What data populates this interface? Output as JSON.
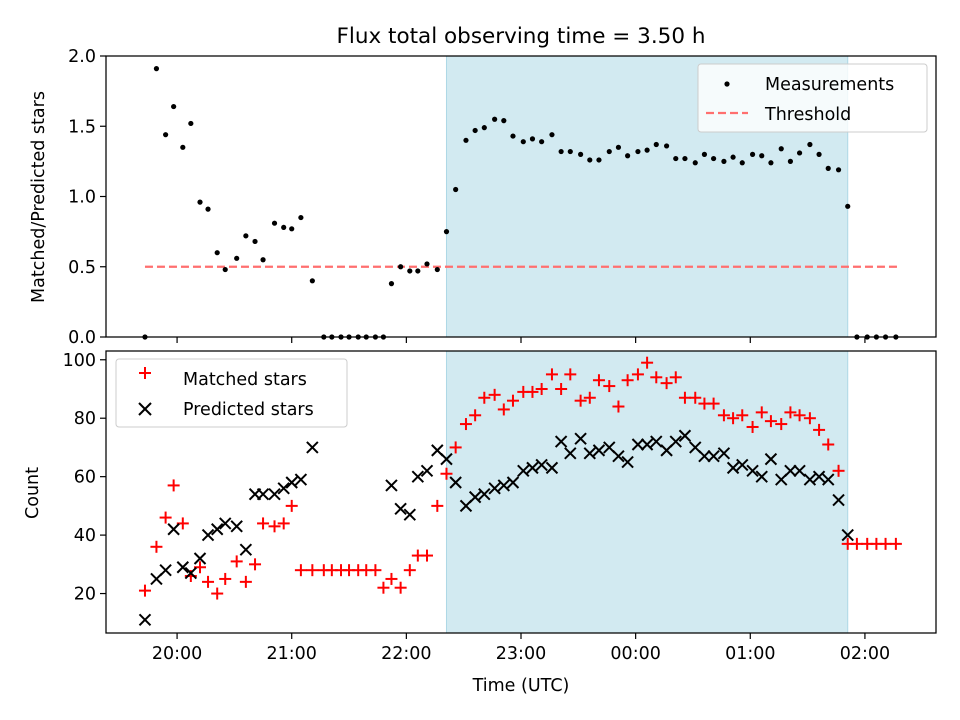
{
  "chart_data": [
    {
      "type": "scatter",
      "title": "Flux total observing time = 3.50 h",
      "xlabel": "",
      "ylabel": "Matched/Predicted stars",
      "x_ticklabels": [
        "20:00",
        "21:00",
        "22:00",
        "23:00",
        "00:00",
        "01:00",
        "02:00"
      ],
      "x_tick_hours": [
        20,
        21,
        22,
        23,
        24,
        25,
        26
      ],
      "xlim_hours": [
        19.38,
        26.62
      ],
      "ylim": [
        0,
        2.0
      ],
      "yticks": [
        0.0,
        0.5,
        1.0,
        1.5,
        2.0
      ],
      "ytick_labels": [
        "0.0",
        "0.5",
        "1.0",
        "1.5",
        "2.0"
      ],
      "shaded_span_hours": [
        22.35,
        25.85
      ],
      "shade_color": "#add8e6",
      "legend_position": "top-right",
      "threshold": {
        "name": "Threshold",
        "y": 0.5,
        "x_range_hours": [
          19.72,
          26.28
        ],
        "color": "#ff6f6f"
      },
      "series": [
        {
          "name": "Measurements",
          "color": "#000000",
          "points": [
            [
              19.72,
              0.0
            ],
            [
              19.82,
              1.91
            ],
            [
              19.9,
              1.44
            ],
            [
              19.97,
              1.64
            ],
            [
              20.05,
              1.35
            ],
            [
              20.12,
              1.52
            ],
            [
              20.2,
              0.96
            ],
            [
              20.27,
              0.91
            ],
            [
              20.35,
              0.6
            ],
            [
              20.42,
              0.48
            ],
            [
              20.52,
              0.56
            ],
            [
              20.6,
              0.72
            ],
            [
              20.68,
              0.68
            ],
            [
              20.75,
              0.55
            ],
            [
              20.85,
              0.81
            ],
            [
              20.93,
              0.78
            ],
            [
              21.0,
              0.77
            ],
            [
              21.08,
              0.85
            ],
            [
              21.18,
              0.4
            ],
            [
              21.28,
              0.0
            ],
            [
              21.35,
              0.0
            ],
            [
              21.43,
              0.0
            ],
            [
              21.5,
              0.0
            ],
            [
              21.58,
              0.0
            ],
            [
              21.65,
              0.0
            ],
            [
              21.73,
              0.0
            ],
            [
              21.8,
              0.0
            ],
            [
              21.87,
              0.38
            ],
            [
              21.95,
              0.5
            ],
            [
              22.03,
              0.47
            ],
            [
              22.1,
              0.47
            ],
            [
              22.18,
              0.52
            ],
            [
              22.27,
              0.48
            ],
            [
              22.35,
              0.75
            ],
            [
              22.43,
              1.05
            ],
            [
              22.52,
              1.4
            ],
            [
              22.6,
              1.47
            ],
            [
              22.68,
              1.49
            ],
            [
              22.77,
              1.55
            ],
            [
              22.85,
              1.54
            ],
            [
              22.93,
              1.43
            ],
            [
              23.02,
              1.39
            ],
            [
              23.1,
              1.41
            ],
            [
              23.18,
              1.39
            ],
            [
              23.27,
              1.44
            ],
            [
              23.35,
              1.32
            ],
            [
              23.43,
              1.32
            ],
            [
              23.52,
              1.3
            ],
            [
              23.6,
              1.26
            ],
            [
              23.68,
              1.26
            ],
            [
              23.77,
              1.32
            ],
            [
              23.85,
              1.35
            ],
            [
              23.93,
              1.29
            ],
            [
              24.02,
              1.32
            ],
            [
              24.1,
              1.33
            ],
            [
              24.18,
              1.37
            ],
            [
              24.27,
              1.36
            ],
            [
              24.35,
              1.27
            ],
            [
              24.43,
              1.27
            ],
            [
              24.52,
              1.24
            ],
            [
              24.6,
              1.3
            ],
            [
              24.68,
              1.27
            ],
            [
              24.77,
              1.25
            ],
            [
              24.85,
              1.28
            ],
            [
              24.93,
              1.24
            ],
            [
              25.02,
              1.3
            ],
            [
              25.1,
              1.29
            ],
            [
              25.18,
              1.24
            ],
            [
              25.27,
              1.34
            ],
            [
              25.35,
              1.25
            ],
            [
              25.43,
              1.31
            ],
            [
              25.52,
              1.37
            ],
            [
              25.6,
              1.3
            ],
            [
              25.68,
              1.2
            ],
            [
              25.77,
              1.19
            ],
            [
              25.85,
              0.93
            ],
            [
              25.93,
              0.0
            ],
            [
              26.02,
              0.0
            ],
            [
              26.1,
              0.0
            ],
            [
              26.18,
              0.0
            ],
            [
              26.27,
              0.0
            ]
          ]
        }
      ]
    },
    {
      "type": "scatter",
      "title": "",
      "xlabel": "Time (UTC)",
      "ylabel": "Count",
      "x_ticklabels": [
        "20:00",
        "21:00",
        "22:00",
        "23:00",
        "00:00",
        "01:00",
        "02:00"
      ],
      "x_tick_hours": [
        20,
        21,
        22,
        23,
        24,
        25,
        26
      ],
      "xlim_hours": [
        19.38,
        26.62
      ],
      "ylim": [
        6.5,
        103
      ],
      "yticks": [
        20,
        40,
        60,
        80,
        100
      ],
      "ytick_labels": [
        "20",
        "40",
        "60",
        "80",
        "100"
      ],
      "shaded_span_hours": [
        22.35,
        25.85
      ],
      "shade_color": "#add8e6",
      "legend_position": "top-left",
      "series": [
        {
          "name": "Matched stars",
          "marker": "+",
          "color": "#ff0000",
          "points": [
            [
              19.72,
              21
            ],
            [
              19.82,
              36
            ],
            [
              19.9,
              46
            ],
            [
              19.97,
              57
            ],
            [
              20.05,
              44
            ],
            [
              20.12,
              26
            ],
            [
              20.2,
              29
            ],
            [
              20.27,
              24
            ],
            [
              20.35,
              20
            ],
            [
              20.42,
              25
            ],
            [
              20.52,
              31
            ],
            [
              20.6,
              24
            ],
            [
              20.68,
              30
            ],
            [
              20.75,
              44
            ],
            [
              20.85,
              43
            ],
            [
              20.93,
              44
            ],
            [
              21.0,
              50
            ],
            [
              21.08,
              28
            ],
            [
              21.18,
              28
            ],
            [
              21.28,
              28
            ],
            [
              21.35,
              28
            ],
            [
              21.43,
              28
            ],
            [
              21.5,
              28
            ],
            [
              21.58,
              28
            ],
            [
              21.65,
              28
            ],
            [
              21.73,
              28
            ],
            [
              21.8,
              22
            ],
            [
              21.87,
              25
            ],
            [
              21.95,
              22
            ],
            [
              22.03,
              28
            ],
            [
              22.1,
              33
            ],
            [
              22.18,
              33
            ],
            [
              22.27,
              50
            ],
            [
              22.35,
              61
            ],
            [
              22.43,
              70
            ],
            [
              22.52,
              78
            ],
            [
              22.6,
              81
            ],
            [
              22.68,
              87
            ],
            [
              22.77,
              88
            ],
            [
              22.85,
              83
            ],
            [
              22.93,
              86
            ],
            [
              23.02,
              89
            ],
            [
              23.1,
              89
            ],
            [
              23.18,
              90
            ],
            [
              23.27,
              95
            ],
            [
              23.35,
              90
            ],
            [
              23.43,
              95
            ],
            [
              23.52,
              86
            ],
            [
              23.6,
              87
            ],
            [
              23.68,
              93
            ],
            [
              23.77,
              91
            ],
            [
              23.85,
              84
            ],
            [
              23.93,
              93
            ],
            [
              24.02,
              95
            ],
            [
              24.1,
              99
            ],
            [
              24.18,
              94
            ],
            [
              24.27,
              92
            ],
            [
              24.35,
              94
            ],
            [
              24.43,
              87
            ],
            [
              24.52,
              87
            ],
            [
              24.6,
              85
            ],
            [
              24.68,
              85
            ],
            [
              24.77,
              81
            ],
            [
              24.85,
              80
            ],
            [
              24.93,
              81
            ],
            [
              25.02,
              77
            ],
            [
              25.1,
              82
            ],
            [
              25.18,
              79
            ],
            [
              25.27,
              78
            ],
            [
              25.35,
              82
            ],
            [
              25.43,
              81
            ],
            [
              25.52,
              80
            ],
            [
              25.6,
              76
            ],
            [
              25.68,
              71
            ],
            [
              25.77,
              62
            ],
            [
              25.85,
              37
            ],
            [
              25.93,
              37
            ],
            [
              26.02,
              37
            ],
            [
              26.1,
              37
            ],
            [
              26.18,
              37
            ],
            [
              26.27,
              37
            ]
          ]
        },
        {
          "name": "Predicted stars",
          "marker": "x",
          "color": "#000000",
          "points": [
            [
              19.72,
              11
            ],
            [
              19.82,
              25
            ],
            [
              19.9,
              28
            ],
            [
              19.97,
              42
            ],
            [
              20.05,
              29
            ],
            [
              20.12,
              27
            ],
            [
              20.2,
              32
            ],
            [
              20.27,
              40
            ],
            [
              20.35,
              42
            ],
            [
              20.42,
              44
            ],
            [
              20.52,
              43
            ],
            [
              20.6,
              35
            ],
            [
              20.68,
              54
            ],
            [
              20.75,
              54
            ],
            [
              20.85,
              54
            ],
            [
              20.93,
              56
            ],
            [
              21.0,
              58
            ],
            [
              21.08,
              59
            ],
            [
              21.18,
              70
            ],
            [
              21.87,
              57
            ],
            [
              21.95,
              49
            ],
            [
              22.03,
              47
            ],
            [
              22.1,
              60
            ],
            [
              22.18,
              62
            ],
            [
              22.27,
              69
            ],
            [
              22.35,
              66
            ],
            [
              22.43,
              58
            ],
            [
              22.52,
              50
            ],
            [
              22.6,
              53
            ],
            [
              22.68,
              54
            ],
            [
              22.77,
              56
            ],
            [
              22.85,
              57
            ],
            [
              22.93,
              58
            ],
            [
              23.02,
              62
            ],
            [
              23.1,
              63
            ],
            [
              23.18,
              64
            ],
            [
              23.27,
              63
            ],
            [
              23.35,
              72
            ],
            [
              23.43,
              68
            ],
            [
              23.52,
              73
            ],
            [
              23.6,
              68
            ],
            [
              23.68,
              69
            ],
            [
              23.77,
              70
            ],
            [
              23.85,
              67
            ],
            [
              23.93,
              65
            ],
            [
              24.02,
              71
            ],
            [
              24.1,
              71
            ],
            [
              24.18,
              72
            ],
            [
              24.27,
              69
            ],
            [
              24.35,
              72
            ],
            [
              24.43,
              74
            ],
            [
              24.52,
              70
            ],
            [
              24.6,
              67
            ],
            [
              24.68,
              67
            ],
            [
              24.77,
              68
            ],
            [
              24.85,
              63
            ],
            [
              24.93,
              64
            ],
            [
              25.02,
              62
            ],
            [
              25.1,
              60
            ],
            [
              25.18,
              66
            ],
            [
              25.27,
              59
            ],
            [
              25.35,
              62
            ],
            [
              25.43,
              62
            ],
            [
              25.52,
              59
            ],
            [
              25.6,
              60
            ],
            [
              25.68,
              59
            ],
            [
              25.77,
              52
            ],
            [
              25.85,
              40
            ]
          ]
        }
      ]
    }
  ]
}
